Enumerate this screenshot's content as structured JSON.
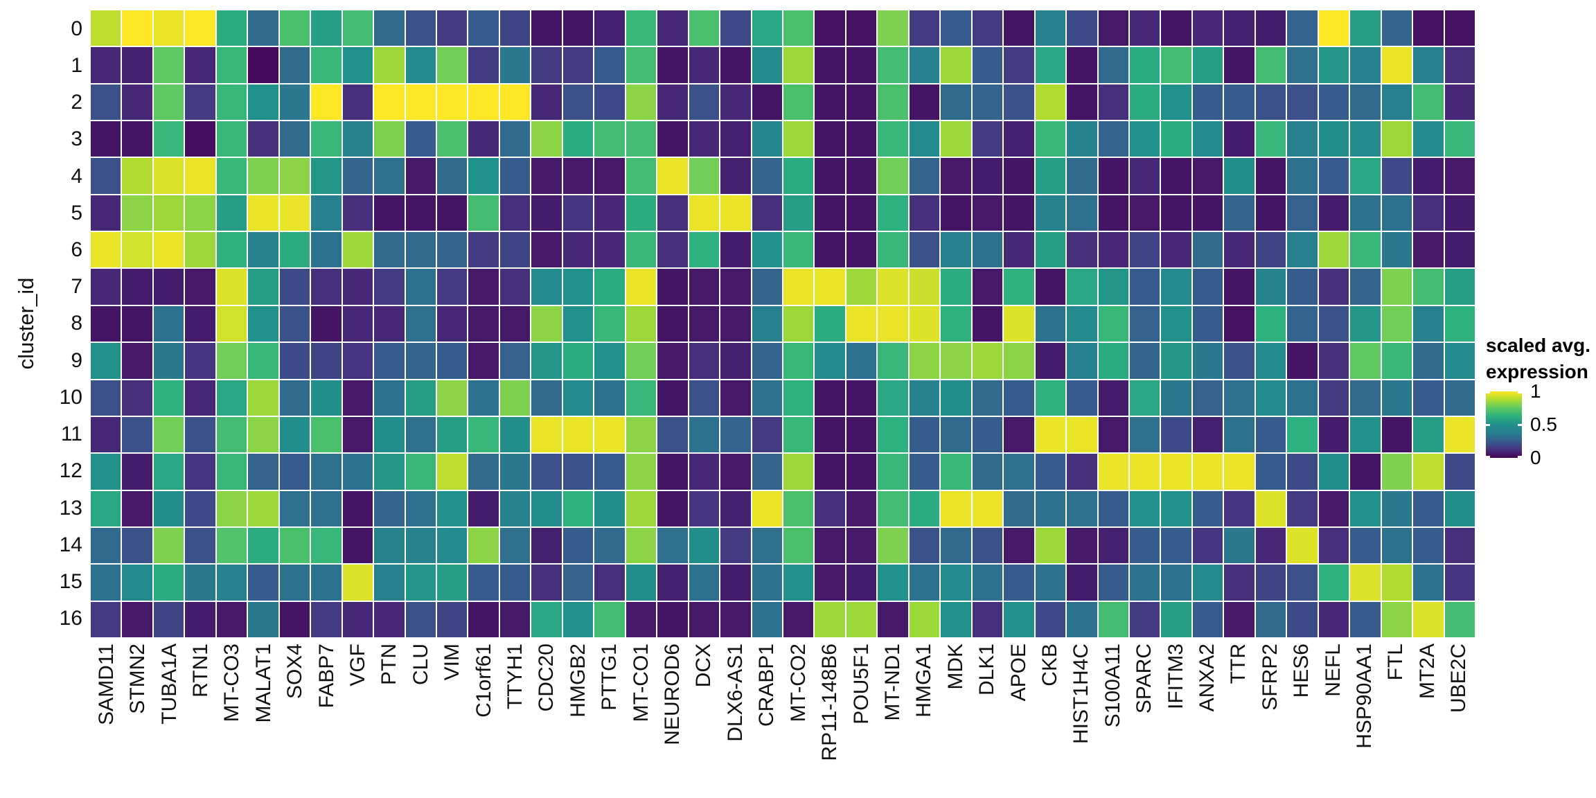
{
  "y_axis": {
    "title": "cluster_id",
    "labels": [
      "0",
      "1",
      "2",
      "3",
      "4",
      "5",
      "6",
      "7",
      "8",
      "9",
      "10",
      "11",
      "12",
      "13",
      "14",
      "15",
      "16"
    ]
  },
  "x_axis": {
    "labels": [
      "SAMD11",
      "STMN2",
      "TUBA1A",
      "RTN1",
      "MT-CO3",
      "MALAT1",
      "SOX4",
      "FABP7",
      "VGF",
      "PTN",
      "CLU",
      "VIM",
      "C1orf61",
      "TTYH1",
      "CDC20",
      "HMGB2",
      "PTTG1",
      "MT-CO1",
      "NEUROD6",
      "DCX",
      "DLX6-AS1",
      "CRABP1",
      "MT-CO2",
      "RP11-148B6",
      "POU5F1",
      "MT-ND1",
      "HMGA1",
      "MDK",
      "DLK1",
      "APOE",
      "CKB",
      "HIST1H4C",
      "S100A11",
      "SPARC",
      "IFITM3",
      "ANXA2",
      "TTR",
      "SFRP2",
      "HES6",
      "NEFL",
      "HSP90AA1",
      "FTL",
      "MT2A",
      "UBE2C"
    ]
  },
  "legend": {
    "title_line1": "scaled avg.",
    "title_line2": "expression",
    "ticks": [
      {
        "label": "1",
        "value": 1
      },
      {
        "label": "0.5",
        "value": 0.5
      },
      {
        "label": "0",
        "value": 0
      }
    ]
  },
  "colors": {
    "plot_background": "#ffffff",
    "grid_line": "#ffffff",
    "axis_text": "#111111",
    "viridis_stops": [
      {
        "t": 0.0,
        "color": "#440154"
      },
      {
        "t": 0.125,
        "color": "#46327e"
      },
      {
        "t": 0.25,
        "color": "#365c8d"
      },
      {
        "t": 0.375,
        "color": "#277f8e"
      },
      {
        "t": 0.5,
        "color": "#21918c"
      },
      {
        "t": 0.625,
        "color": "#2db27d"
      },
      {
        "t": 0.75,
        "color": "#5ec962"
      },
      {
        "t": 0.875,
        "color": "#addc30"
      },
      {
        "t": 1.0,
        "color": "#fde725"
      }
    ]
  },
  "chart_data": {
    "type": "heatmap",
    "title": "",
    "xlabel": "",
    "ylabel": "cluster_id",
    "colorbar_label": "scaled avg. expression",
    "value_range": [
      0,
      1
    ],
    "x": [
      "SAMD11",
      "STMN2",
      "TUBA1A",
      "RTN1",
      "MT-CO3",
      "MALAT1",
      "SOX4",
      "FABP7",
      "VGF",
      "PTN",
      "CLU",
      "VIM",
      "C1orf61",
      "TTYH1",
      "CDC20",
      "HMGB2",
      "PTTG1",
      "MT-CO1",
      "NEUROD6",
      "DCX",
      "DLX6-AS1",
      "CRABP1",
      "MT-CO2",
      "RP11-148B6",
      "POU5F1",
      "MT-ND1",
      "HMGA1",
      "MDK",
      "DLK1",
      "APOE",
      "CKB",
      "HIST1H4C",
      "S100A11",
      "SPARC",
      "IFITM3",
      "ANXA2",
      "TTR",
      "SFRP2",
      "HES6",
      "NEFL",
      "HSP90AA1",
      "FTL",
      "MT2A",
      "UBE2C"
    ],
    "y": [
      "0",
      "1",
      "2",
      "3",
      "4",
      "5",
      "6",
      "7",
      "8",
      "9",
      "10",
      "11",
      "12",
      "13",
      "14",
      "15",
      "16"
    ],
    "values": [
      [
        0.9,
        1.0,
        0.97,
        1.0,
        0.6,
        0.3,
        0.7,
        0.55,
        0.68,
        0.3,
        0.22,
        0.15,
        0.25,
        0.18,
        0.05,
        0.05,
        0.08,
        0.65,
        0.1,
        0.7,
        0.2,
        0.58,
        0.7,
        0.04,
        0.04,
        0.8,
        0.15,
        0.25,
        0.15,
        0.05,
        0.38,
        0.2,
        0.06,
        0.1,
        0.05,
        0.1,
        0.08,
        0.07,
        0.28,
        1.0,
        0.55,
        0.28,
        0.04,
        0.04
      ],
      [
        0.1,
        0.08,
        0.75,
        0.1,
        0.65,
        0.02,
        0.3,
        0.65,
        0.5,
        0.85,
        0.45,
        0.78,
        0.15,
        0.35,
        0.15,
        0.15,
        0.25,
        0.68,
        0.05,
        0.1,
        0.05,
        0.45,
        0.85,
        0.05,
        0.05,
        0.68,
        0.38,
        0.85,
        0.25,
        0.15,
        0.58,
        0.05,
        0.3,
        0.6,
        0.68,
        0.55,
        0.05,
        0.68,
        0.32,
        0.52,
        0.38,
        0.97,
        0.38,
        0.12
      ],
      [
        0.22,
        0.1,
        0.75,
        0.15,
        0.65,
        0.5,
        0.35,
        1.0,
        0.12,
        1.0,
        1.0,
        1.0,
        1.0,
        1.0,
        0.1,
        0.22,
        0.2,
        0.82,
        0.1,
        0.22,
        0.1,
        0.05,
        0.7,
        0.05,
        0.05,
        0.7,
        0.05,
        0.3,
        0.28,
        0.22,
        0.88,
        0.05,
        0.12,
        0.6,
        0.5,
        0.25,
        0.25,
        0.22,
        0.22,
        0.25,
        0.3,
        0.38,
        0.68,
        0.1
      ],
      [
        0.05,
        0.05,
        0.65,
        0.03,
        0.65,
        0.12,
        0.3,
        0.65,
        0.4,
        0.8,
        0.25,
        0.7,
        0.1,
        0.3,
        0.82,
        0.6,
        0.68,
        0.68,
        0.05,
        0.1,
        0.08,
        0.42,
        0.85,
        0.05,
        0.05,
        0.65,
        0.45,
        0.85,
        0.15,
        0.08,
        0.65,
        0.4,
        0.28,
        0.5,
        0.6,
        0.45,
        0.07,
        0.65,
        0.38,
        0.48,
        0.45,
        0.85,
        0.45,
        0.65
      ],
      [
        0.22,
        0.88,
        0.95,
        0.97,
        0.65,
        0.8,
        0.82,
        0.52,
        0.28,
        0.32,
        0.06,
        0.3,
        0.5,
        0.25,
        0.06,
        0.06,
        0.06,
        0.68,
        0.97,
        0.78,
        0.08,
        0.28,
        0.6,
        0.05,
        0.05,
        0.78,
        0.28,
        0.06,
        0.07,
        0.05,
        0.55,
        0.3,
        0.05,
        0.1,
        0.05,
        0.06,
        0.48,
        0.05,
        0.33,
        0.25,
        0.58,
        0.2,
        0.07,
        0.06
      ],
      [
        0.1,
        0.82,
        0.85,
        0.82,
        0.55,
        0.97,
        0.97,
        0.38,
        0.12,
        0.05,
        0.05,
        0.05,
        0.68,
        0.12,
        0.07,
        0.13,
        0.1,
        0.6,
        0.12,
        0.97,
        0.97,
        0.12,
        0.55,
        0.05,
        0.05,
        0.62,
        0.12,
        0.05,
        0.06,
        0.05,
        0.4,
        0.32,
        0.05,
        0.06,
        0.05,
        0.05,
        0.28,
        0.05,
        0.27,
        0.07,
        0.33,
        0.33,
        0.12,
        0.07
      ],
      [
        0.97,
        0.93,
        0.97,
        0.85,
        0.62,
        0.4,
        0.6,
        0.33,
        0.85,
        0.3,
        0.3,
        0.28,
        0.15,
        0.18,
        0.06,
        0.1,
        0.1,
        0.65,
        0.12,
        0.62,
        0.07,
        0.5,
        0.65,
        0.05,
        0.05,
        0.65,
        0.22,
        0.38,
        0.33,
        0.1,
        0.55,
        0.12,
        0.1,
        0.18,
        0.1,
        0.3,
        0.1,
        0.18,
        0.38,
        0.85,
        0.65,
        0.35,
        0.06,
        0.07
      ],
      [
        0.1,
        0.07,
        0.07,
        0.06,
        0.95,
        0.55,
        0.2,
        0.12,
        0.1,
        0.15,
        0.33,
        0.15,
        0.06,
        0.12,
        0.45,
        0.5,
        0.6,
        0.97,
        0.05,
        0.06,
        0.06,
        0.28,
        0.97,
        0.97,
        0.85,
        0.95,
        0.92,
        0.6,
        0.06,
        0.62,
        0.05,
        0.58,
        0.52,
        0.25,
        0.45,
        0.25,
        0.05,
        0.4,
        0.25,
        0.12,
        0.28,
        0.8,
        0.68,
        0.55
      ],
      [
        0.05,
        0.05,
        0.33,
        0.07,
        0.93,
        0.5,
        0.22,
        0.05,
        0.1,
        0.1,
        0.32,
        0.1,
        0.06,
        0.06,
        0.82,
        0.5,
        0.65,
        0.85,
        0.05,
        0.06,
        0.06,
        0.38,
        0.85,
        0.6,
        0.97,
        0.97,
        0.95,
        0.62,
        0.05,
        0.95,
        0.33,
        0.45,
        0.65,
        0.27,
        0.5,
        0.25,
        0.04,
        0.62,
        0.28,
        0.22,
        0.52,
        0.78,
        0.38,
        0.62
      ],
      [
        0.5,
        0.06,
        0.35,
        0.13,
        0.78,
        0.65,
        0.2,
        0.18,
        0.13,
        0.25,
        0.28,
        0.25,
        0.06,
        0.27,
        0.52,
        0.6,
        0.5,
        0.78,
        0.06,
        0.12,
        0.08,
        0.28,
        0.65,
        0.45,
        0.33,
        0.65,
        0.82,
        0.82,
        0.85,
        0.82,
        0.07,
        0.38,
        0.6,
        0.28,
        0.52,
        0.35,
        0.22,
        0.45,
        0.05,
        0.12,
        0.75,
        0.65,
        0.3,
        0.45
      ],
      [
        0.22,
        0.12,
        0.62,
        0.1,
        0.58,
        0.85,
        0.3,
        0.48,
        0.06,
        0.33,
        0.55,
        0.82,
        0.33,
        0.8,
        0.3,
        0.45,
        0.33,
        0.65,
        0.05,
        0.22,
        0.06,
        0.32,
        0.62,
        0.05,
        0.05,
        0.58,
        0.4,
        0.48,
        0.3,
        0.25,
        0.62,
        0.25,
        0.07,
        0.58,
        0.35,
        0.27,
        0.32,
        0.45,
        0.33,
        0.15,
        0.3,
        0.35,
        0.25,
        0.3
      ],
      [
        0.1,
        0.22,
        0.78,
        0.22,
        0.68,
        0.82,
        0.48,
        0.7,
        0.06,
        0.48,
        0.32,
        0.55,
        0.65,
        0.48,
        0.97,
        0.97,
        0.97,
        0.82,
        0.22,
        0.33,
        0.28,
        0.15,
        0.65,
        0.05,
        0.05,
        0.62,
        0.25,
        0.3,
        0.25,
        0.06,
        0.97,
        0.97,
        0.06,
        0.32,
        0.2,
        0.08,
        0.33,
        0.25,
        0.62,
        0.07,
        0.5,
        0.05,
        0.55,
        0.97
      ],
      [
        0.5,
        0.07,
        0.58,
        0.13,
        0.65,
        0.27,
        0.25,
        0.32,
        0.33,
        0.52,
        0.65,
        0.9,
        0.3,
        0.35,
        0.22,
        0.22,
        0.25,
        0.82,
        0.05,
        0.1,
        0.06,
        0.28,
        0.85,
        0.05,
        0.05,
        0.65,
        0.25,
        0.65,
        0.3,
        0.32,
        0.25,
        0.12,
        0.97,
        0.97,
        0.97,
        0.97,
        0.97,
        0.25,
        0.2,
        0.48,
        0.05,
        0.8,
        0.9,
        0.2
      ],
      [
        0.58,
        0.06,
        0.48,
        0.2,
        0.82,
        0.85,
        0.32,
        0.32,
        0.05,
        0.28,
        0.32,
        0.5,
        0.07,
        0.4,
        0.48,
        0.62,
        0.48,
        0.85,
        0.05,
        0.13,
        0.08,
        0.97,
        0.7,
        0.12,
        0.06,
        0.68,
        0.6,
        0.97,
        0.97,
        0.3,
        0.33,
        0.32,
        0.25,
        0.5,
        0.5,
        0.25,
        0.13,
        0.95,
        0.15,
        0.06,
        0.5,
        0.35,
        0.25,
        0.48
      ],
      [
        0.3,
        0.22,
        0.8,
        0.22,
        0.72,
        0.6,
        0.7,
        0.65,
        0.05,
        0.4,
        0.4,
        0.45,
        0.82,
        0.32,
        0.08,
        0.25,
        0.3,
        0.82,
        0.32,
        0.48,
        0.15,
        0.32,
        0.7,
        0.06,
        0.06,
        0.8,
        0.22,
        0.3,
        0.22,
        0.06,
        0.85,
        0.06,
        0.08,
        0.25,
        0.25,
        0.13,
        0.35,
        0.1,
        0.95,
        0.12,
        0.25,
        0.33,
        0.25,
        0.12
      ],
      [
        0.33,
        0.45,
        0.6,
        0.35,
        0.38,
        0.25,
        0.33,
        0.33,
        0.95,
        0.38,
        0.52,
        0.55,
        0.25,
        0.25,
        0.12,
        0.27,
        0.12,
        0.48,
        0.08,
        0.33,
        0.07,
        0.33,
        0.5,
        0.06,
        0.07,
        0.5,
        0.33,
        0.45,
        0.33,
        0.25,
        0.33,
        0.07,
        0.25,
        0.33,
        0.33,
        0.45,
        0.12,
        0.18,
        0.22,
        0.62,
        0.95,
        0.88,
        0.33,
        0.13
      ],
      [
        0.15,
        0.06,
        0.18,
        0.07,
        0.06,
        0.35,
        0.05,
        0.15,
        0.1,
        0.1,
        0.22,
        0.18,
        0.05,
        0.06,
        0.58,
        0.5,
        0.68,
        0.06,
        0.05,
        0.06,
        0.06,
        0.33,
        0.06,
        0.85,
        0.85,
        0.06,
        0.85,
        0.5,
        0.12,
        0.5,
        0.2,
        0.33,
        0.68,
        0.15,
        0.55,
        0.25,
        0.06,
        0.3,
        0.2,
        0.1,
        0.25,
        0.82,
        0.95,
        0.68
      ]
    ]
  }
}
